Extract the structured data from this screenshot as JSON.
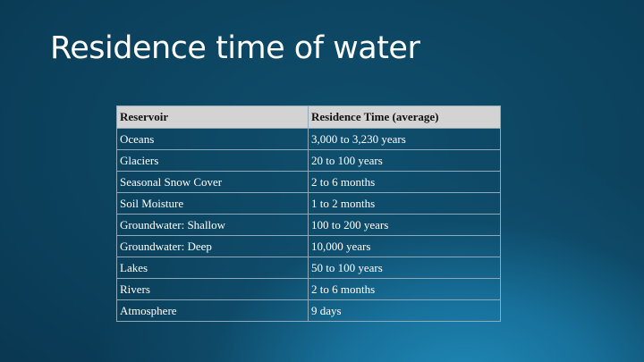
{
  "slide": {
    "title": "Residence time of water"
  },
  "table": {
    "headers": [
      "Reservoir",
      "Residence Time (average)"
    ],
    "rows": [
      [
        "Oceans",
        "3,000 to 3,230 years"
      ],
      [
        "Glaciers",
        "20 to 100 years"
      ],
      [
        "Seasonal Snow Cover",
        "2 to 6 months"
      ],
      [
        "Soil Moisture",
        "1 to 2 months"
      ],
      [
        "Groundwater: Shallow",
        "100 to 200 years"
      ],
      [
        "Groundwater: Deep",
        "10,000 years"
      ],
      [
        "Lakes",
        "50 to 100 years"
      ],
      [
        "Rivers",
        "2 to 6 months"
      ],
      [
        "Atmosphere",
        "9 days"
      ]
    ]
  },
  "colors": {
    "background": "#0b3f5a",
    "header_fill": "#d3d3d3",
    "text": "#ffffff"
  }
}
